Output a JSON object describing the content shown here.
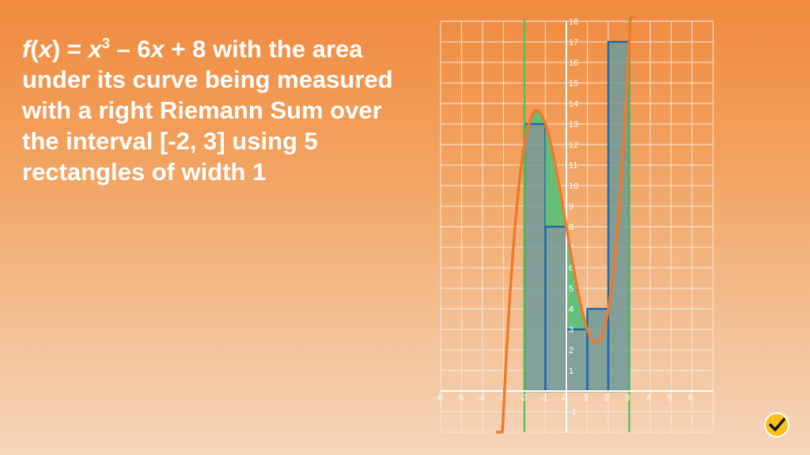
{
  "caption": {
    "fx": "f",
    "x_open": "(",
    "x": "x",
    "x_close": ")",
    "eq": " = ",
    "x3": "x",
    "sup3": "3",
    "minus": " – 6",
    "x_b": "x",
    "rest1": " + 8 with the area",
    "line2": "under its curve being measured",
    "line3": "with a right Riemann Sum over",
    "line4": "the interval [-2, 3] using 5",
    "line5": "rectangles of width 1"
  },
  "chart_data": {
    "type": "area",
    "function": "x^3 - 6x + 8",
    "interval": [
      -2,
      3
    ],
    "rectangles": {
      "method": "right",
      "width": 1,
      "x_left": [
        -2,
        -1,
        0,
        1,
        2
      ],
      "heights": [
        13,
        8,
        3,
        4,
        17
      ]
    },
    "xlim": [
      -6,
      7
    ],
    "ylim": [
      -2,
      18
    ],
    "x_ticks": [
      "-6",
      "-5",
      "-4",
      "-3",
      "-2",
      "-1",
      "0",
      "1",
      "2",
      "3",
      "4",
      "5",
      "6"
    ],
    "y_ticks": [
      "-1",
      "1",
      "2",
      "3",
      "4",
      "5",
      "6",
      "7",
      "8",
      "9",
      "10",
      "11",
      "12",
      "13",
      "14",
      "15",
      "16",
      "17",
      "18"
    ],
    "grid": true,
    "colors": {
      "grid": "#f7e6d8",
      "curve": "#f07a2a",
      "rect_fill": "#6f9a99",
      "rect_stroke": "#1f6aa6",
      "excess_fill": "#57c07a",
      "boundary_line": "#4fbf5a",
      "axis": "#ffffff"
    }
  },
  "logo": {
    "name": "checkmark-icon",
    "color": "#f7c11a"
  }
}
